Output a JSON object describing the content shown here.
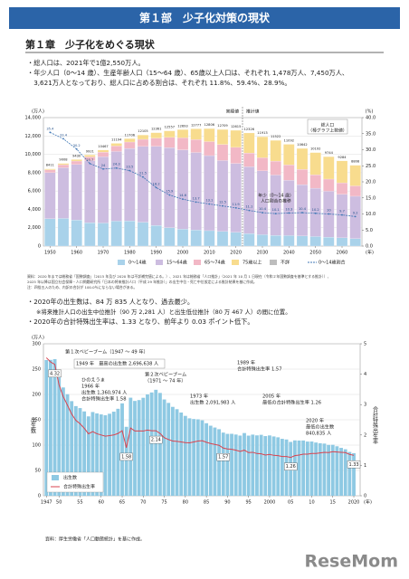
{
  "header": {
    "title": "第１部　少子化対策の現状"
  },
  "chapter": {
    "title": "第１章　少子化をめぐる現状"
  },
  "bullets1": [
    "・総人口は、2021年で1億2,550万人。",
    "・年少人口（0～14 歳）、生産年齢人口（15～64 歳）、65歳以上人口は、それぞれ 1,478万人、7,450万人、",
    "　3,621万人となっており、総人口に占める割合は、それぞれ 11.8%、59.4%、28.9%。"
  ],
  "notes1": [
    "資料：2020 年までは総務省「国勢調査」（2015 年及び 2020 年は不詳補完値による。）、2021 年は総務省「人口推計」（2021 年 10 月 1 日現在（令和２年国勢調査を基準とする推計））、",
    "2025 年以降は国立社会保障・人口問題研究所「日本の将来推計人口（平成 29 年推計）」の出生中位・死亡中位仮定による推計結果を基に作成。",
    "注：四捨五入のため、内訳の合計が 100.0％にならない場合がある。"
  ],
  "bullets2": [
    "・2020年の出生数は、84 万 835 人となり、過去最少。",
    "※将来推計人口の出生中位推計（90 万 2,281 人）と出生低位推計（80 万 467 人）の間に位置。",
    "・2020年の合計特殊出生率は、1.33 となり、前年より 0.03 ポイント低下。"
  ],
  "source": "資料：厚生労働省「人口動態統計」を基に作成。",
  "logo": "ReseMom",
  "chart_data": [
    {
      "type": "stacked_bar_line",
      "yunit": "(万人)",
      "y2unit": "(%)",
      "xunit": "(年)",
      "x": [
        1950,
        1955,
        1960,
        1965,
        1970,
        1975,
        1980,
        1985,
        1990,
        1995,
        2000,
        2005,
        2010,
        2015,
        2020,
        2025,
        2030,
        2035,
        2040,
        2045,
        2050,
        2055,
        2060,
        2065
      ],
      "xlim": [
        1947.5,
        2067.5
      ],
      "xticks": [
        1950,
        1960,
        1970,
        1980,
        1990,
        2000,
        2010,
        2020,
        2030,
        2040,
        2050,
        2060
      ],
      "ylim": [
        0,
        14000
      ],
      "yticks": [
        0,
        {
          "value": 2000,
          "label": "2,000"
        },
        {
          "value": 4000,
          "label": "4,000"
        },
        {
          "value": 6000,
          "label": "6,000"
        },
        {
          "value": 8000,
          "label": "8,000"
        },
        {
          "value": 10000,
          "label": "10,000"
        },
        {
          "value": 12000,
          "label": "12,000"
        },
        {
          "value": 14000,
          "label": "14,000"
        }
      ],
      "y2lim": [
        0,
        40
      ],
      "y2ticks": [
        {
          "value": 0,
          "label": "0.0"
        },
        {
          "value": 5,
          "label": "5.0"
        },
        {
          "value": 10,
          "label": "10.0"
        },
        {
          "value": 15,
          "label": "15.0"
        },
        {
          "value": 20,
          "label": "20.0"
        },
        {
          "value": 25,
          "label": "25.0"
        },
        {
          "value": 30,
          "label": "30.0"
        },
        {
          "value": 35,
          "label": "35.0"
        },
        {
          "value": 40,
          "label": "40.0"
        }
      ],
      "grid": true,
      "series": [
        {
          "name": "0～14歳",
          "color": "#a9d2ea",
          "values": [
            2979,
            3012,
            2843,
            2553,
            2515,
            2722,
            2751,
            2603,
            2249,
            2001,
            1847,
            1752,
            1680,
            1595,
            1503,
            1363,
            1240,
            1169,
            1142,
            1104,
            1041,
            974,
            897,
            814
          ]
        },
        {
          "name": "15～64歳",
          "color": "#cdbde0",
          "values": [
            5021,
            5521,
            6047,
            6750,
            7213,
            7585,
            7890,
            8255,
            8619,
            8728,
            8642,
            8449,
            8178,
            7727,
            7509,
            7286,
            6957,
            6571,
            6029,
            5593,
            5263,
            5000,
            4743,
            4613
          ]
        },
        {
          "name": "65～74歳",
          "color": "#f2b8c6",
          "values": [
            304,
            336,
            377,
            429,
            515,
            603,
            699,
            776,
            896,
            1111,
            1303,
            1412,
            1529,
            1755,
            1743,
            1497,
            1428,
            1522,
            1682,
            1668,
            1471,
            1324,
            1257,
            1133
          ]
        },
        {
          "name": "75歳以上",
          "color": "#f8dc8e",
          "values": [
            107,
            139,
            163,
            189,
            224,
            284,
            366,
            471,
            597,
            717,
            901,
            1164,
            1419,
            1632,
            1860,
            2180,
            2288,
            2260,
            2239,
            2277,
            2417,
            2446,
            2387,
            2248
          ]
        },
        {
          "name": "不詳",
          "color": "#bdbdbd",
          "values": [
            0,
            0,
            0,
            0,
            0,
            0,
            0,
            0,
            0,
            0,
            0,
            0,
            0,
            0,
            0,
            0,
            0,
            0,
            0,
            0,
            0,
            0,
            0,
            0
          ]
        },
        {
          "name": "0～14歳割合",
          "color": "#3f77b5",
          "axis": "y2",
          "values": [
            35.4,
            33.4,
            30.2,
            25.7,
            24.0,
            24.3,
            23.5,
            21.5,
            18.2,
            15.9,
            14.6,
            13.7,
            13.1,
            12.5,
            11.9,
            11.1,
            10.4,
            10.1,
            10.3,
            10.4,
            10.2,
            10.0,
            9.7,
            9.2
          ]
        }
      ],
      "totals": [
        8411,
        9008,
        9430,
        9921,
        10467,
        11194,
        11706,
        12105,
        12361,
        12557,
        12693,
        12777,
        12806,
        12709,
        12615,
        12326,
        11913,
        11522,
        11092,
        10642,
        10192,
        9744,
        9284,
        8808
      ],
      "annotations": [
        [
          "実績値"
        ],
        [
          "推計値"
        ],
        [
          "総人口",
          "（棒グラフ上数値）"
        ],
        [
          "年少（0～14 歳）",
          "人口割合の推移"
        ]
      ]
    },
    {
      "type": "bar_line",
      "yunit": "(万人)",
      "ylabel": "出生数",
      "y2label": "合計特殊出生率",
      "xunit": "(年)",
      "x": [
        1947,
        1948,
        1949,
        1950,
        1951,
        1952,
        1953,
        1954,
        1955,
        1956,
        1957,
        1958,
        1959,
        1960,
        1961,
        1962,
        1963,
        1964,
        1965,
        1966,
        1967,
        1968,
        1969,
        1970,
        1971,
        1972,
        1973,
        1974,
        1975,
        1976,
        1977,
        1978,
        1979,
        1980,
        1981,
        1982,
        1983,
        1984,
        1985,
        1986,
        1987,
        1988,
        1989,
        1990,
        1991,
        1992,
        1993,
        1994,
        1995,
        1996,
        1997,
        1998,
        1999,
        2000,
        2001,
        2002,
        2003,
        2004,
        2005,
        2006,
        2007,
        2008,
        2009,
        2010,
        2011,
        2012,
        2013,
        2014,
        2015,
        2016,
        2017,
        2018,
        2019,
        2020
      ],
      "xlim": [
        1946.3,
        2021.5
      ],
      "xticks": [
        {
          "value": 1947,
          "label": "1947"
        },
        {
          "value": 1950,
          "label": "50"
        },
        {
          "value": 1955,
          "label": "55"
        },
        {
          "value": 1960,
          "label": "60"
        },
        {
          "value": 1965,
          "label": "65"
        },
        {
          "value": 1970,
          "label": "70"
        },
        {
          "value": 1975,
          "label": "75"
        },
        {
          "value": 1980,
          "label": "80"
        },
        {
          "value": 1985,
          "label": "85"
        },
        {
          "value": 1990,
          "label": "90"
        },
        {
          "value": 1995,
          "label": "95"
        },
        {
          "value": 2000,
          "label": "2000"
        },
        {
          "value": 2005,
          "label": "05"
        },
        {
          "value": 2010,
          "label": "10"
        },
        {
          "value": 2015,
          "label": "15"
        },
        {
          "value": 2020,
          "label": "2020"
        }
      ],
      "ylim": [
        0,
        300
      ],
      "yticks": [
        0,
        50,
        100,
        150,
        200,
        250,
        300
      ],
      "y2lim": [
        0,
        5
      ],
      "y2ticks": [
        0,
        1,
        2,
        3,
        4,
        5
      ],
      "series": [
        {
          "name": "出生数",
          "color": "#8ec9e3",
          "values": [
            267.9,
            268.2,
            269.7,
            233.8,
            213.8,
            200.5,
            186.8,
            177.0,
            173.1,
            166.5,
            156.7,
            165.3,
            162.6,
            160.6,
            158.9,
            161.9,
            166.0,
            171.7,
            182.4,
            136.1,
            193.6,
            187.2,
            188.9,
            193.4,
            200.1,
            203.9,
            209.2,
            203.0,
            190.1,
            183.3,
            175.5,
            170.9,
            164.3,
            157.7,
            152.9,
            151.5,
            150.9,
            149.0,
            143.2,
            138.3,
            134.7,
            131.4,
            124.7,
            122.2,
            122.3,
            120.9,
            118.8,
            123.8,
            118.7,
            120.7,
            119.2,
            120.3,
            117.8,
            119.1,
            117.1,
            115.4,
            112.4,
            111.1,
            106.3,
            109.3,
            109.0,
            109.1,
            107.0,
            107.1,
            105.1,
            103.7,
            103.0,
            100.4,
            100.6,
            97.7,
            94.6,
            91.8,
            86.5,
            84.1
          ]
        },
        {
          "name": "合計特殊出生率",
          "color": "#d9434f",
          "axis": "y2",
          "values": [
            4.54,
            4.4,
            4.32,
            3.65,
            3.26,
            2.98,
            2.69,
            2.48,
            2.37,
            2.22,
            2.04,
            2.11,
            2.04,
            2.0,
            1.96,
            1.98,
            2.0,
            2.05,
            2.14,
            1.58,
            2.23,
            2.13,
            2.13,
            2.13,
            2.16,
            2.14,
            2.14,
            2.05,
            1.91,
            1.85,
            1.8,
            1.79,
            1.77,
            1.75,
            1.74,
            1.77,
            1.8,
            1.81,
            1.76,
            1.72,
            1.69,
            1.66,
            1.57,
            1.54,
            1.53,
            1.5,
            1.46,
            1.5,
            1.42,
            1.43,
            1.39,
            1.38,
            1.34,
            1.36,
            1.33,
            1.32,
            1.29,
            1.29,
            1.26,
            1.32,
            1.34,
            1.37,
            1.37,
            1.39,
            1.39,
            1.41,
            1.43,
            1.42,
            1.45,
            1.44,
            1.43,
            1.42,
            1.36,
            1.33
          ],
          "value_labels": [
            null,
            null,
            "4.32",
            null,
            null,
            null,
            null,
            null,
            null,
            null,
            null,
            null,
            null,
            null,
            null,
            null,
            null,
            null,
            null,
            "1.58",
            null,
            null,
            null,
            null,
            null,
            null,
            "2.14",
            null,
            null,
            null,
            null,
            null,
            null,
            null,
            null,
            null,
            null,
            null,
            null,
            null,
            null,
            null,
            "1.57",
            null,
            null,
            null,
            null,
            null,
            null,
            null,
            null,
            null,
            null,
            null,
            null,
            null,
            null,
            null,
            "1.26",
            null,
            null,
            null,
            null,
            null,
            null,
            null,
            null,
            null,
            null,
            null,
            null,
            null,
            null,
            "1.33"
          ]
        }
      ],
      "annotations": [
        [
          "第１次ベビーブーム（1947 ～ 49 年）"
        ],
        [
          "1949 年　最高の出生数 2,696,638 人"
        ],
        [
          "ひのえうま",
          "1966 年",
          "出生数 1,360,974 人",
          "合計特殊出生率 1.58"
        ],
        [
          "第２次ベビーブーム",
          "（1971 ～ 74 年）"
        ],
        [
          "1973 年",
          "出生数 2,091,983 人"
        ],
        [
          "1989 年",
          "合計特殊出生率 1.57"
        ],
        [
          "2005 年",
          "最低の合計特殊出生率 1.26"
        ],
        [
          "2020 年",
          "最低の出生数",
          "840,835 人"
        ]
      ]
    }
  ]
}
